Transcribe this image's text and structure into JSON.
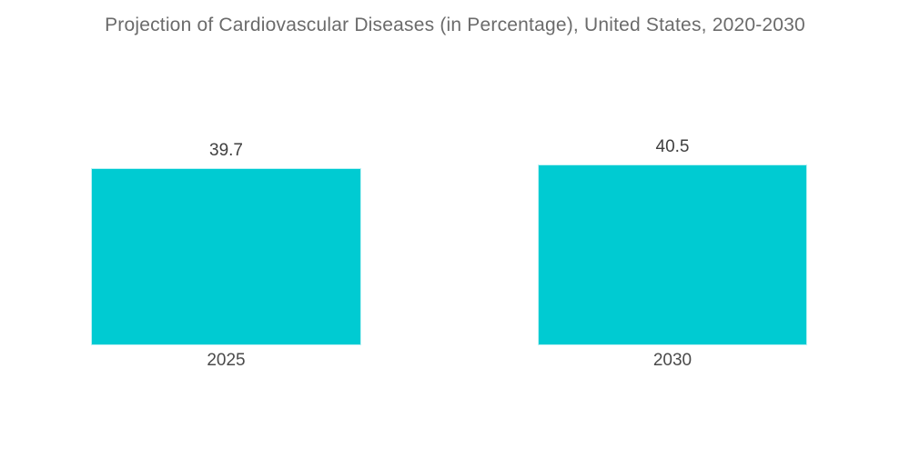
{
  "chart_data": {
    "type": "bar",
    "title": "Projection of Cardiovascular Diseases (in Percentage), United States, 2020-2030",
    "categories": [
      "2025",
      "2030"
    ],
    "values": [
      39.7,
      40.5
    ],
    "value_labels": [
      "39.7",
      "40.5"
    ],
    "xlabel": "",
    "ylabel": "",
    "ylim": [
      0,
      42
    ],
    "grid": false,
    "legend": "none",
    "axes_visible": false,
    "colors": {
      "bar": "#00CBD2",
      "title_text": "#6B6B6B",
      "value_text": "#3F3F3F",
      "category_text": "#4A4A4A",
      "background": "#FFFFFF"
    }
  }
}
